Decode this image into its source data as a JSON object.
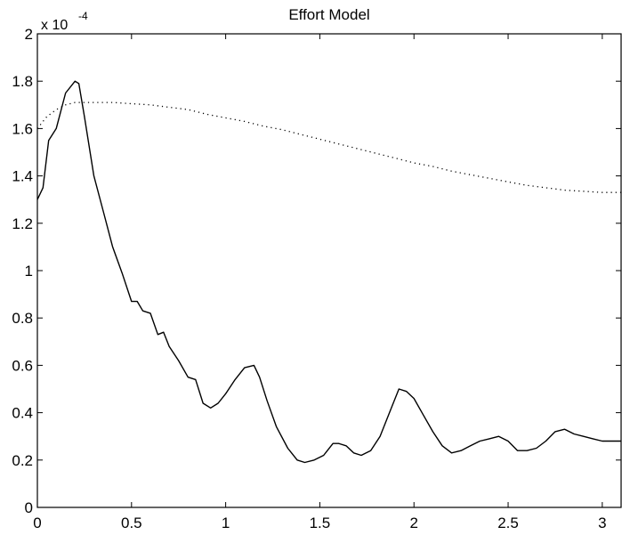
{
  "chart_data": {
    "type": "line",
    "title": "Effort Model",
    "xlabel": "",
    "ylabel": "",
    "y_scale_label": {
      "base": "x 10",
      "exponent": "-4"
    },
    "xlim": [
      0,
      3.1
    ],
    "ylim": [
      0,
      2
    ],
    "x_ticks": [
      0,
      0.5,
      1,
      1.5,
      2,
      2.5,
      3
    ],
    "x_tick_labels": [
      "0",
      "0.5",
      "1",
      "1.5",
      "2",
      "2.5",
      "3"
    ],
    "y_ticks": [
      0,
      0.2,
      0.4,
      0.6,
      0.8,
      1,
      1.2,
      1.4,
      1.6,
      1.8,
      2
    ],
    "y_tick_labels": [
      "0",
      "0.2",
      "0.4",
      "0.6",
      "0.8",
      "1",
      "1.2",
      "1.4",
      "1.6",
      "1.8",
      "2"
    ],
    "grid": false,
    "series": [
      {
        "style": "solid",
        "color": "#000000",
        "x": [
          0,
          0.03,
          0.06,
          0.1,
          0.15,
          0.2,
          0.22,
          0.25,
          0.3,
          0.35,
          0.4,
          0.45,
          0.5,
          0.53,
          0.56,
          0.6,
          0.64,
          0.67,
          0.7,
          0.75,
          0.8,
          0.84,
          0.88,
          0.92,
          0.96,
          1.0,
          1.05,
          1.1,
          1.15,
          1.18,
          1.22,
          1.27,
          1.33,
          1.38,
          1.42,
          1.47,
          1.52,
          1.57,
          1.6,
          1.64,
          1.68,
          1.72,
          1.77,
          1.82,
          1.88,
          1.92,
          1.96,
          2.0,
          2.05,
          2.1,
          2.15,
          2.2,
          2.25,
          2.3,
          2.35,
          2.4,
          2.45,
          2.5,
          2.55,
          2.6,
          2.65,
          2.7,
          2.75,
          2.8,
          2.85,
          2.9,
          2.95,
          3.0,
          3.05,
          3.1
        ],
        "values": [
          1.3,
          1.35,
          1.55,
          1.6,
          1.75,
          1.8,
          1.79,
          1.65,
          1.4,
          1.25,
          1.1,
          0.99,
          0.87,
          0.87,
          0.83,
          0.82,
          0.73,
          0.74,
          0.68,
          0.62,
          0.55,
          0.54,
          0.44,
          0.42,
          0.44,
          0.48,
          0.54,
          0.59,
          0.6,
          0.55,
          0.45,
          0.34,
          0.25,
          0.2,
          0.19,
          0.2,
          0.22,
          0.27,
          0.27,
          0.26,
          0.23,
          0.22,
          0.24,
          0.3,
          0.42,
          0.5,
          0.49,
          0.46,
          0.39,
          0.32,
          0.26,
          0.23,
          0.24,
          0.26,
          0.28,
          0.29,
          0.3,
          0.28,
          0.24,
          0.24,
          0.25,
          0.28,
          0.32,
          0.33,
          0.31,
          0.3,
          0.29,
          0.28,
          0.28,
          0.28
        ]
      },
      {
        "style": "dotted",
        "color": "#000000",
        "x": [
          0,
          0.05,
          0.1,
          0.15,
          0.2,
          0.25,
          0.3,
          0.4,
          0.5,
          0.6,
          0.7,
          0.8,
          0.9,
          1.0,
          1.1,
          1.2,
          1.3,
          1.4,
          1.5,
          1.6,
          1.7,
          1.8,
          1.9,
          2.0,
          2.1,
          2.2,
          2.3,
          2.4,
          2.5,
          2.6,
          2.7,
          2.8,
          2.9,
          3.0,
          3.1
        ],
        "values": [
          1.6,
          1.65,
          1.68,
          1.7,
          1.71,
          1.71,
          1.71,
          1.71,
          1.705,
          1.7,
          1.69,
          1.68,
          1.66,
          1.645,
          1.63,
          1.61,
          1.595,
          1.575,
          1.555,
          1.535,
          1.515,
          1.495,
          1.475,
          1.455,
          1.44,
          1.42,
          1.405,
          1.39,
          1.375,
          1.36,
          1.35,
          1.34,
          1.335,
          1.33,
          1.33
        ]
      }
    ]
  }
}
